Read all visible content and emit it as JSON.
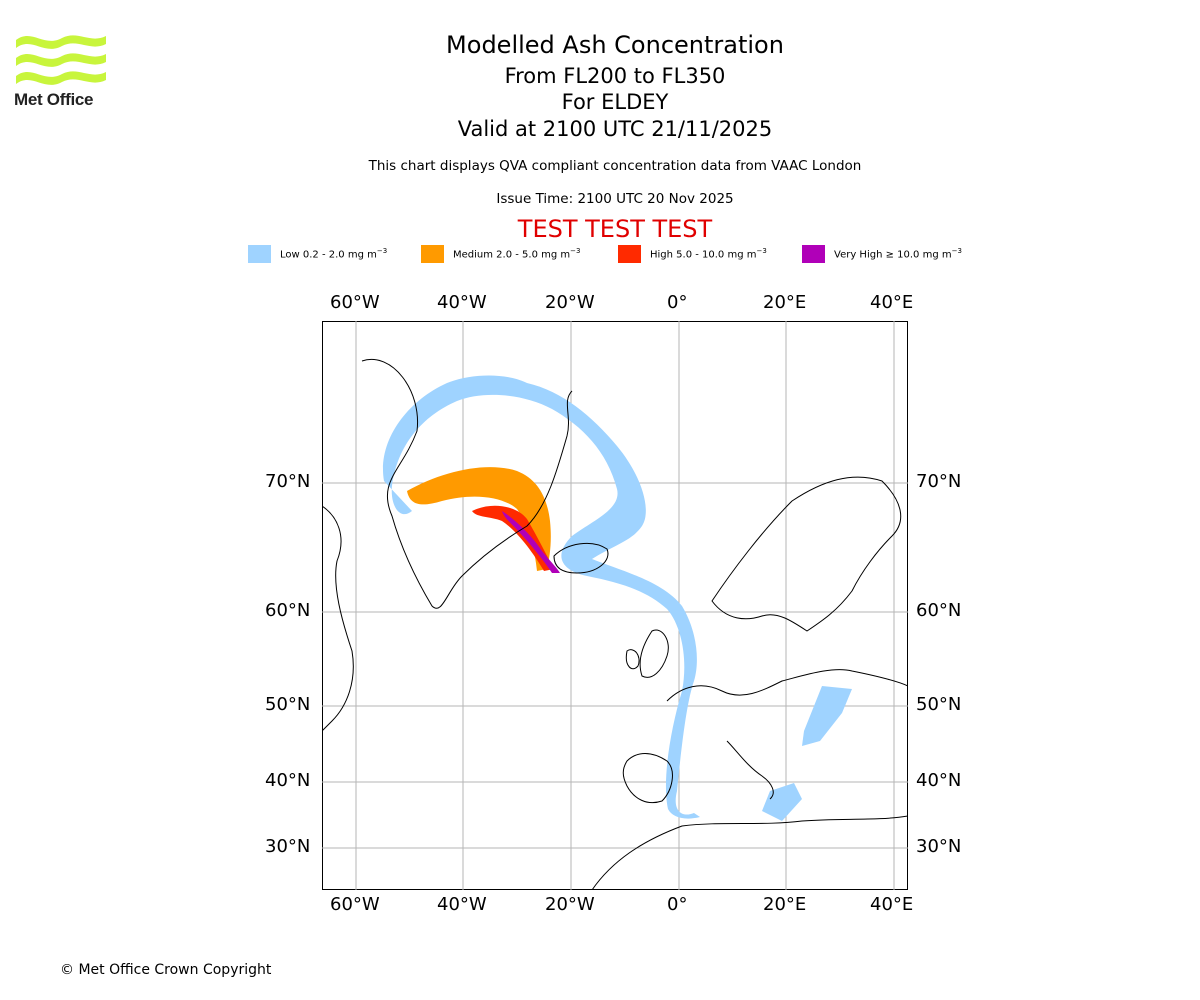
{
  "logo": {
    "text": "Met Office",
    "color": "#c8f53c"
  },
  "header": {
    "title": "Modelled Ash Concentration",
    "levels": "From FL200 to FL350",
    "volcano": "For ELDEY",
    "valid": "Valid at 2100 UTC 21/11/2025",
    "compliance": "This chart displays QVA compliant concentration data from VAAC London",
    "issue": "Issue Time: 2100 UTC 20 Nov 2025",
    "test": "TEST TEST TEST"
  },
  "legend": [
    {
      "label": "Low 0.2 - 2.0 mg m",
      "color": "#9fd3ff"
    },
    {
      "label": "Medium 2.0 - 5.0 mg m",
      "color": "#ff9a00"
    },
    {
      "label": "High 5.0 - 10.0 mg m",
      "color": "#ff2a00"
    },
    {
      "label": "Very High ≥ 10.0 mg m",
      "color": "#b000b8"
    }
  ],
  "legend_unit_exp": "−3",
  "axes": {
    "lon_labels": [
      "60°W",
      "40°W",
      "20°W",
      "0°",
      "20°E",
      "40°E"
    ],
    "lat_labels": [
      "70°N",
      "60°N",
      "50°N",
      "40°N",
      "30°N"
    ]
  },
  "footer": {
    "copyright": "© Met Office Crown Copyright"
  }
}
